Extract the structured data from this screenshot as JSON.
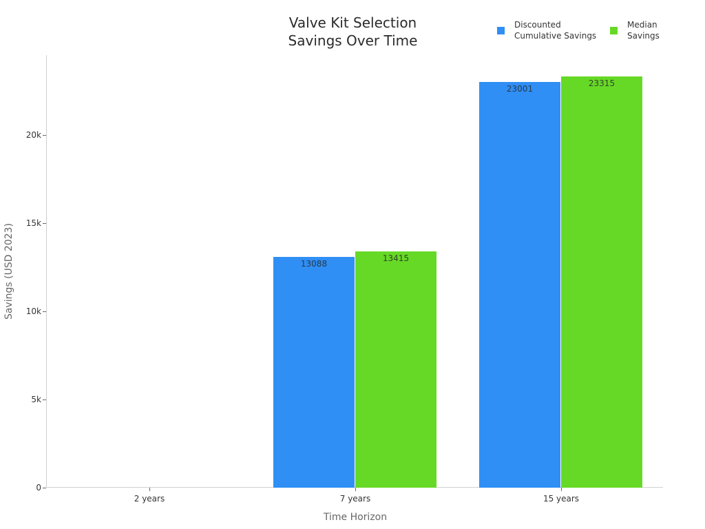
{
  "chart_data": {
    "type": "bar",
    "title": "Valve Kit Selection Savings Over Time",
    "title_lines": [
      "Valve Kit Selection",
      "Savings Over Time"
    ],
    "xlabel": "Time Horizon",
    "ylabel": "Savings (USD 2023)",
    "categories": [
      "2 years",
      "7 years",
      "15 years"
    ],
    "series": [
      {
        "name": "Discounted Cumulative Savings",
        "legend_lines": "Discounted\nCumulative Savings",
        "color": "#2f8ff5",
        "values": [
          0,
          13088,
          23001
        ]
      },
      {
        "name": "Median Savings",
        "legend_lines": "Median\nSavings",
        "color": "#66d926",
        "values": [
          0,
          13415,
          23315
        ]
      }
    ],
    "yticks": [
      "0",
      "5k",
      "10k",
      "15k",
      "20k"
    ],
    "ytick_values": [
      0,
      5000,
      10000,
      15000,
      20000
    ],
    "ylim": [
      0,
      24500
    ],
    "grid": false,
    "legend_position": "top-right",
    "data_labels": {
      "7 years": [
        "13088",
        "13415"
      ],
      "15 years": [
        "23001",
        "23315"
      ]
    }
  }
}
